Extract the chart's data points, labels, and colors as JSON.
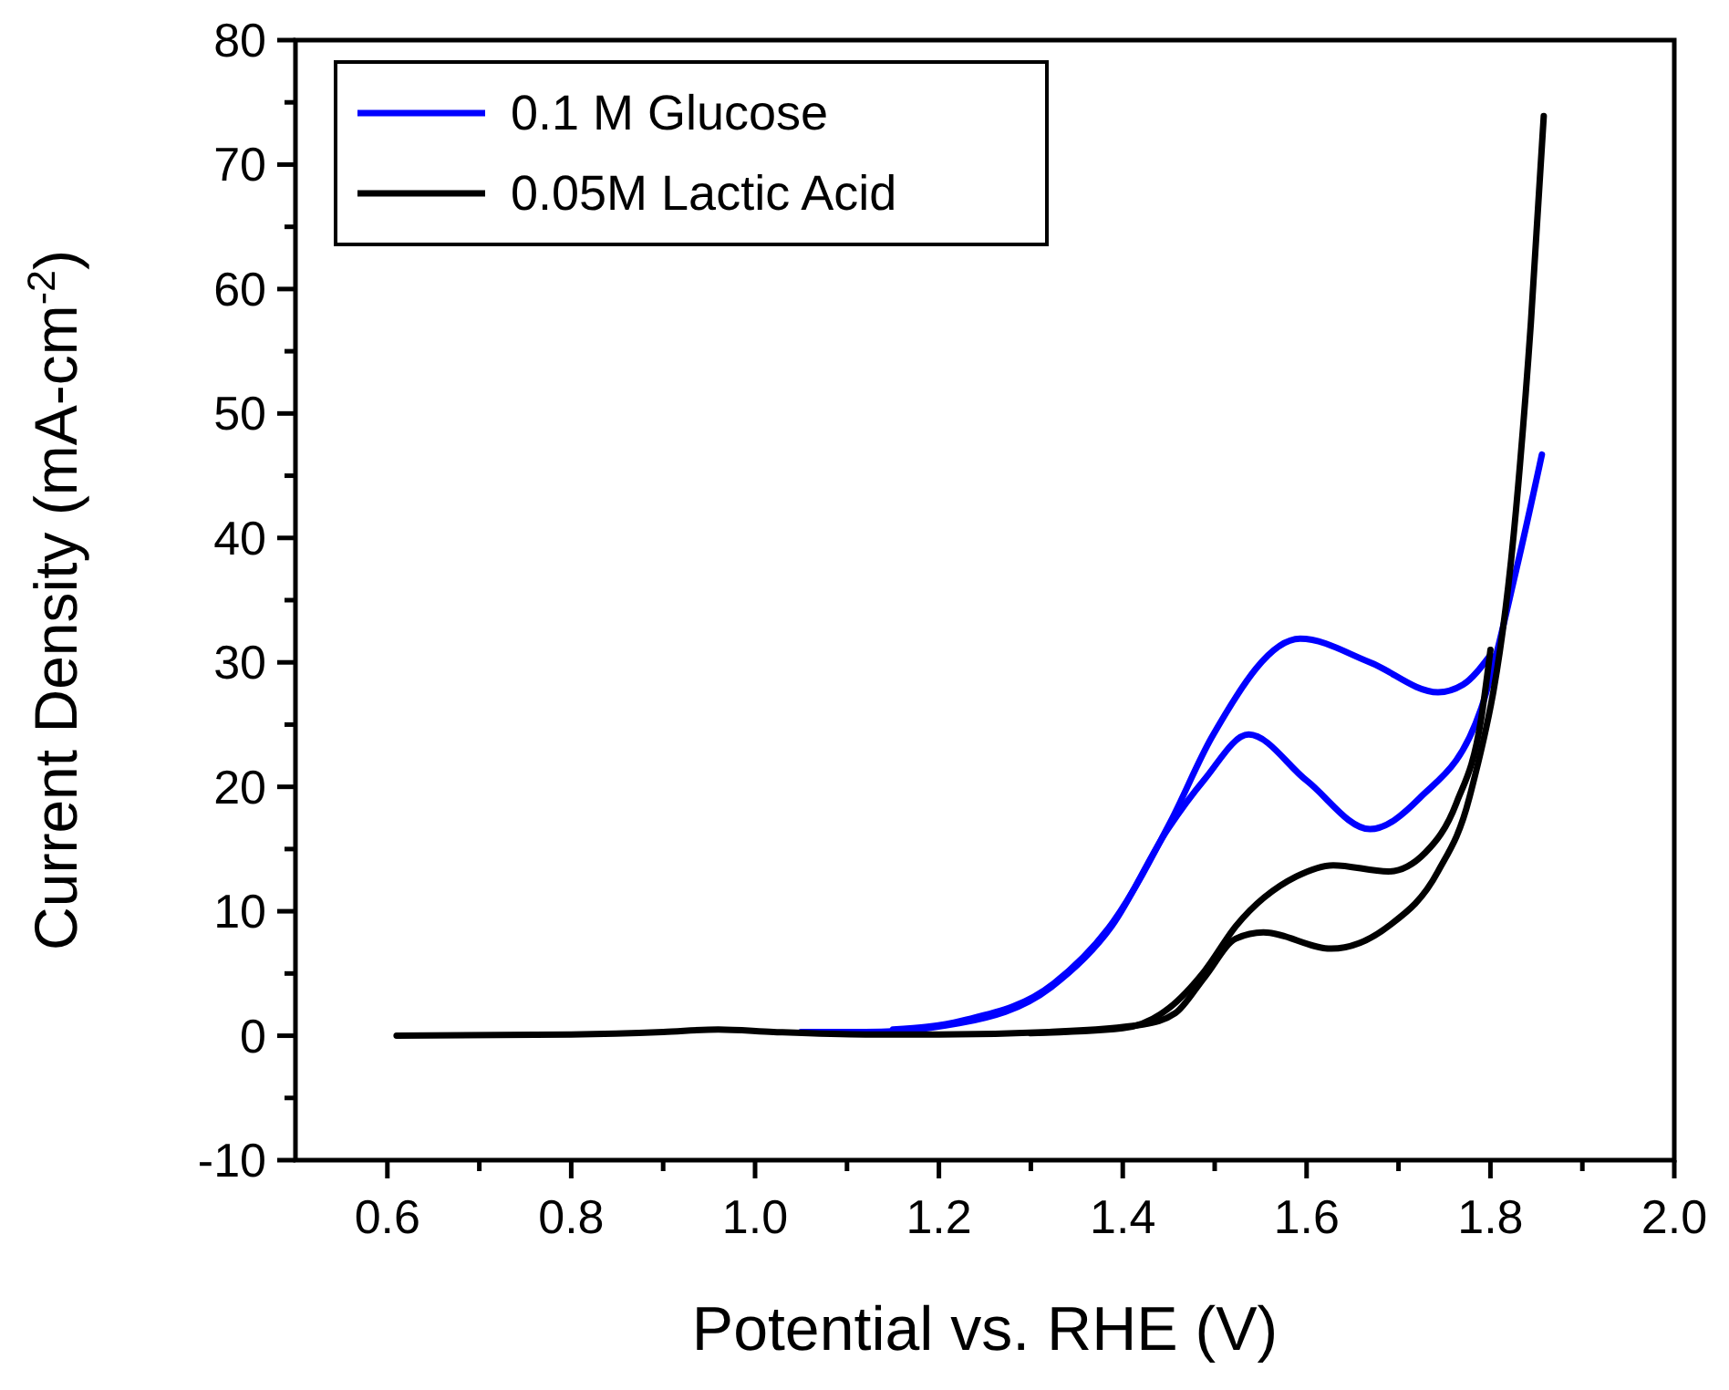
{
  "chart_data": {
    "type": "line",
    "xlabel": "Potential vs. RHE (V)",
    "ylabel": "Current Density (mA-cm$^{-2}$)",
    "xlim": [
      0.5,
      2.0
    ],
    "ylim": [
      -10,
      80
    ],
    "xticks": [
      {
        "value": 0.6,
        "label": "0.6"
      },
      {
        "value": 0.7,
        "label": null
      },
      {
        "value": 0.8,
        "label": "0.8"
      },
      {
        "value": 0.9,
        "label": null
      },
      {
        "value": 1.0,
        "label": "1.0"
      },
      {
        "value": 1.1,
        "label": null
      },
      {
        "value": 1.2,
        "label": "1.2"
      },
      {
        "value": 1.3,
        "label": null
      },
      {
        "value": 1.4,
        "label": "1.4"
      },
      {
        "value": 1.5,
        "label": null
      },
      {
        "value": 1.6,
        "label": "1.6"
      },
      {
        "value": 1.7,
        "label": null
      },
      {
        "value": 1.8,
        "label": "1.8"
      },
      {
        "value": 1.9,
        "label": null
      },
      {
        "value": 2.0,
        "label": "2.0"
      }
    ],
    "yticks": [
      -10,
      {
        "value": -5,
        "label": null
      },
      0,
      {
        "value": 5,
        "label": null
      },
      10,
      {
        "value": 15,
        "label": null
      },
      20,
      {
        "value": 25,
        "label": null
      },
      30,
      {
        "value": 35,
        "label": null
      },
      40,
      {
        "value": 45,
        "label": null
      },
      50,
      {
        "value": 55,
        "label": null
      },
      60,
      {
        "value": 65,
        "label": null
      },
      70,
      {
        "value": 75,
        "label": null
      },
      80
    ],
    "legend": "top left",
    "grid": false,
    "marker": "none",
    "line_style": "solid",
    "series": [
      {
        "name": "0.1 M Glucose",
        "color": "#0000ff",
        "x": [
          1.05,
          1.12,
          1.222,
          1.322,
          1.388,
          1.449,
          1.489,
          1.537,
          1.6,
          1.669,
          1.723,
          1.79,
          1.828,
          1.856
        ],
        "values": [
          0.3,
          0.3,
          1.0,
          3.9,
          8.8,
          16.6,
          20.6,
          24.2,
          20.5,
          16.6,
          19.1,
          26.3,
          37.4,
          46.7
        ]
      },
      {
        "color": "#0000ff",
        "x": [
          1.15,
          1.225,
          1.325,
          1.39,
          1.452,
          1.497,
          1.593,
          1.669,
          1.743,
          1.77,
          1.8
        ],
        "values": [
          0.5,
          1.2,
          4.2,
          9.2,
          17.2,
          24.0,
          31.9,
          30.0,
          27.6,
          28.2,
          30.6
        ]
      },
      {
        "name": "0.05M Lactic Acid",
        "color": "#000000",
        "x": [
          0.61,
          0.8,
          0.9,
          0.96,
          1.02,
          1.12,
          1.2,
          1.32,
          1.422,
          1.457,
          1.489,
          1.523,
          1.553,
          1.627,
          1.689,
          1.743,
          1.777,
          1.828,
          1.844,
          1.858
        ],
        "values": [
          0,
          0.1,
          0.3,
          0.5,
          0.3,
          0.1,
          0.1,
          0.3,
          0.9,
          1.8,
          4.7,
          7.8,
          8.3,
          7.0,
          8.8,
          13.2,
          19.1,
          42.4,
          57.3,
          73.9
        ]
      },
      {
        "color": "#000000",
        "x": [
          1.3,
          1.4,
          1.45,
          1.489,
          1.523,
          1.589,
          1.629,
          1.689,
          1.729,
          1.763,
          1.79,
          1.8
        ],
        "values": [
          0.2,
          0.6,
          2.2,
          5.2,
          8.8,
          12.8,
          13.7,
          13.2,
          14.7,
          18.7,
          25.5,
          31.0
        ]
      }
    ]
  }
}
